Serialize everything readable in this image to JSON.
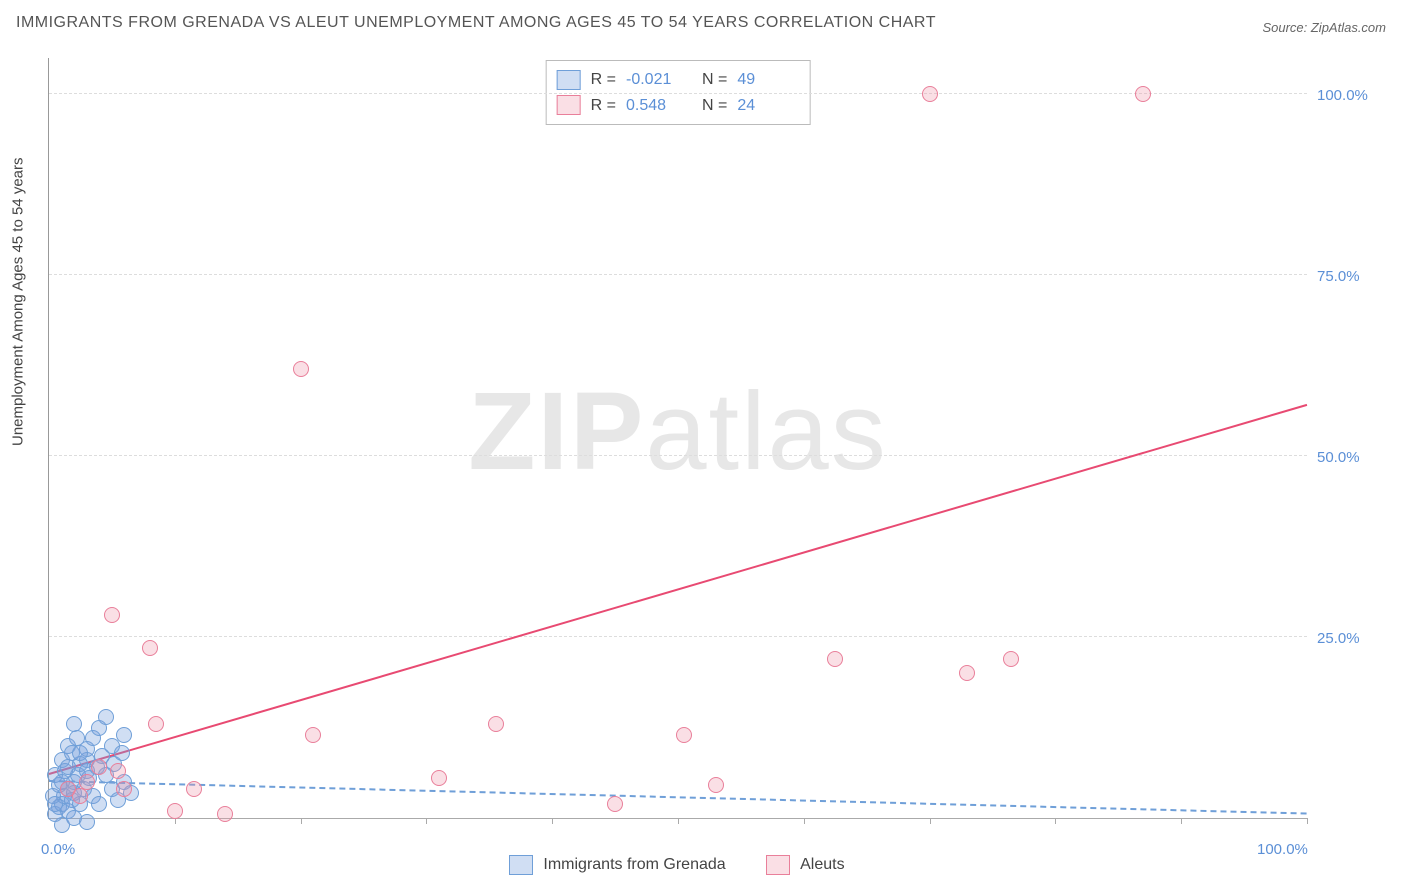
{
  "title": "IMMIGRANTS FROM GRENADA VS ALEUT UNEMPLOYMENT AMONG AGES 45 TO 54 YEARS CORRELATION CHART",
  "source_label": "Source: ",
  "source_link": "ZipAtlas.com",
  "ylabel": "Unemployment Among Ages 45 to 54 years",
  "watermark_bold": "ZIP",
  "watermark_rest": "atlas",
  "chart": {
    "type": "scatter",
    "xlim": [
      0,
      100
    ],
    "ylim": [
      0,
      105
    ],
    "grid_color": "#dddddd",
    "background_color": "#ffffff",
    "yticks": [
      25,
      50,
      75,
      100
    ],
    "ytick_labels": [
      "25.0%",
      "50.0%",
      "75.0%",
      "100.0%"
    ],
    "xticks_minor": [
      10,
      20,
      30,
      40,
      50,
      60,
      70,
      80,
      90,
      100
    ],
    "xaxis_labels": [
      {
        "pos": 0,
        "text": "0.0%"
      },
      {
        "pos": 100,
        "text": "100.0%"
      }
    ],
    "marker_size": 14,
    "series": [
      {
        "name": "Immigrants from Grenada",
        "color_fill": "rgba(120,160,220,0.35)",
        "color_stroke": "#6f9fd8",
        "class": "pt-blue",
        "R": "-0.021",
        "N": "49",
        "regression": {
          "x1": 0,
          "y1": 5.0,
          "x2": 100,
          "y2": 0.5,
          "class": "reg-blue"
        },
        "points": [
          {
            "x": 0.5,
            "y": 0.5
          },
          {
            "x": 0.8,
            "y": 1.5
          },
          {
            "x": 1.0,
            "y": 2.0
          },
          {
            "x": 1.2,
            "y": 3.0
          },
          {
            "x": 1.5,
            "y": 1.0
          },
          {
            "x": 1.5,
            "y": 4.0
          },
          {
            "x": 1.8,
            "y": 2.5
          },
          {
            "x": 2.0,
            "y": 5.0
          },
          {
            "x": 2.0,
            "y": 3.5
          },
          {
            "x": 2.3,
            "y": 6.0
          },
          {
            "x": 2.5,
            "y": 2.0
          },
          {
            "x": 2.5,
            "y": 7.5
          },
          {
            "x": 2.8,
            "y": 4.0
          },
          {
            "x": 3.0,
            "y": 8.0
          },
          {
            "x": 3.0,
            "y": 9.5
          },
          {
            "x": 3.2,
            "y": 5.5
          },
          {
            "x": 3.5,
            "y": 11.0
          },
          {
            "x": 3.5,
            "y": 3.0
          },
          {
            "x": 3.8,
            "y": 7.0
          },
          {
            "x": 4.0,
            "y": 12.5
          },
          {
            "x": 4.0,
            "y": 2.0
          },
          {
            "x": 4.2,
            "y": 8.5
          },
          {
            "x": 4.5,
            "y": 6.0
          },
          {
            "x": 4.5,
            "y": 14.0
          },
          {
            "x": 5.0,
            "y": 4.0
          },
          {
            "x": 5.0,
            "y": 10.0
          },
          {
            "x": 5.2,
            "y": 7.5
          },
          {
            "x": 5.5,
            "y": 2.5
          },
          {
            "x": 5.8,
            "y": 9.0
          },
          {
            "x": 6.0,
            "y": 5.0
          },
          {
            "x": 6.0,
            "y": 11.5
          },
          {
            "x": 6.5,
            "y": 3.5
          },
          {
            "x": 1.0,
            "y": -1.0
          },
          {
            "x": 2.0,
            "y": 0.0
          },
          {
            "x": 3.0,
            "y": -0.5
          },
          {
            "x": 0.3,
            "y": 3.0
          },
          {
            "x": 0.5,
            "y": 6.0
          },
          {
            "x": 1.0,
            "y": 8.0
          },
          {
            "x": 1.5,
            "y": 10.0
          },
          {
            "x": 2.0,
            "y": 13.0
          },
          {
            "x": 0.8,
            "y": 4.5
          },
          {
            "x": 1.3,
            "y": 6.5
          },
          {
            "x": 1.8,
            "y": 9.0
          },
          {
            "x": 2.2,
            "y": 11.0
          },
          {
            "x": 0.5,
            "y": 2.0
          },
          {
            "x": 1.0,
            "y": 5.0
          },
          {
            "x": 1.5,
            "y": 7.0
          },
          {
            "x": 2.5,
            "y": 9.0
          },
          {
            "x": 3.0,
            "y": 6.5
          }
        ]
      },
      {
        "name": "Aleuts",
        "color_fill": "rgba(240,150,170,0.3)",
        "color_stroke": "#e97f9a",
        "class": "pt-pink",
        "R": "0.548",
        "N": "24",
        "regression": {
          "x1": 0,
          "y1": 6.0,
          "x2": 100,
          "y2": 57.0,
          "class": "reg-pink"
        },
        "points": [
          {
            "x": 1.5,
            "y": 4.0
          },
          {
            "x": 2.5,
            "y": 3.0
          },
          {
            "x": 3.0,
            "y": 5.0
          },
          {
            "x": 4.0,
            "y": 7.0
          },
          {
            "x": 5.0,
            "y": 28.0
          },
          {
            "x": 5.5,
            "y": 6.5
          },
          {
            "x": 8.0,
            "y": 23.5
          },
          {
            "x": 8.5,
            "y": 13.0
          },
          {
            "x": 10.0,
            "y": 1.0
          },
          {
            "x": 11.5,
            "y": 4.0
          },
          {
            "x": 14.0,
            "y": 0.5
          },
          {
            "x": 20.0,
            "y": 62.0
          },
          {
            "x": 21.0,
            "y": 11.5
          },
          {
            "x": 31.0,
            "y": 5.5
          },
          {
            "x": 35.5,
            "y": 13.0
          },
          {
            "x": 45.0,
            "y": 2.0
          },
          {
            "x": 50.5,
            "y": 11.5
          },
          {
            "x": 53.0,
            "y": 4.5
          },
          {
            "x": 62.5,
            "y": 22.0
          },
          {
            "x": 70.0,
            "y": 100.0
          },
          {
            "x": 73.0,
            "y": 20.0
          },
          {
            "x": 76.5,
            "y": 22.0
          },
          {
            "x": 87.0,
            "y": 100.0
          },
          {
            "x": 6.0,
            "y": 4.0
          }
        ]
      }
    ]
  },
  "legend": {
    "r_label": "R =",
    "n_label": "N ="
  }
}
